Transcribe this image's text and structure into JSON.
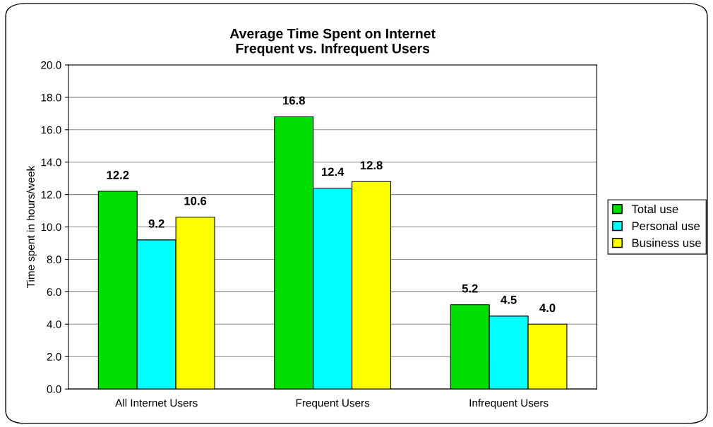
{
  "chart_data": {
    "type": "bar",
    "title": "Average Time Spent on Internet\nFrequent vs. Infrequent Users",
    "ylabel": "Time spent in hours/week",
    "categories": [
      "All Internet Users",
      "Frequent Users",
      "Infrequent Users"
    ],
    "series": [
      {
        "name": "Total use",
        "color": "#00dd00",
        "values": [
          12.2,
          16.8,
          5.2
        ],
        "value_labels": [
          "12.2",
          "16.8",
          "5.2"
        ]
      },
      {
        "name": "Personal use",
        "color": "#00ffff",
        "values": [
          9.2,
          12.4,
          4.5
        ],
        "value_labels": [
          "9.2",
          "12.4",
          "4.5"
        ]
      },
      {
        "name": "Business use",
        "color": "#ffff00",
        "values": [
          10.6,
          12.8,
          4.0
        ],
        "value_labels": [
          "10.6",
          "12.8",
          "4.0"
        ]
      }
    ],
    "ylim": [
      0,
      20
    ],
    "yticks": [
      {
        "value": 0,
        "label": "0.0"
      },
      {
        "value": 2,
        "label": "2.0"
      },
      {
        "value": 4,
        "label": "4.0"
      },
      {
        "value": 6,
        "label": "6.0"
      },
      {
        "value": 8,
        "label": "8.0"
      },
      {
        "value": 10,
        "label": "10.0"
      },
      {
        "value": 12,
        "label": "12.0"
      },
      {
        "value": 14,
        "label": "14.0"
      },
      {
        "value": 16,
        "label": "16.0"
      },
      {
        "value": 18,
        "label": "18.0"
      },
      {
        "value": 20,
        "label": "20.0"
      }
    ],
    "grid": "y",
    "legend": "right"
  }
}
